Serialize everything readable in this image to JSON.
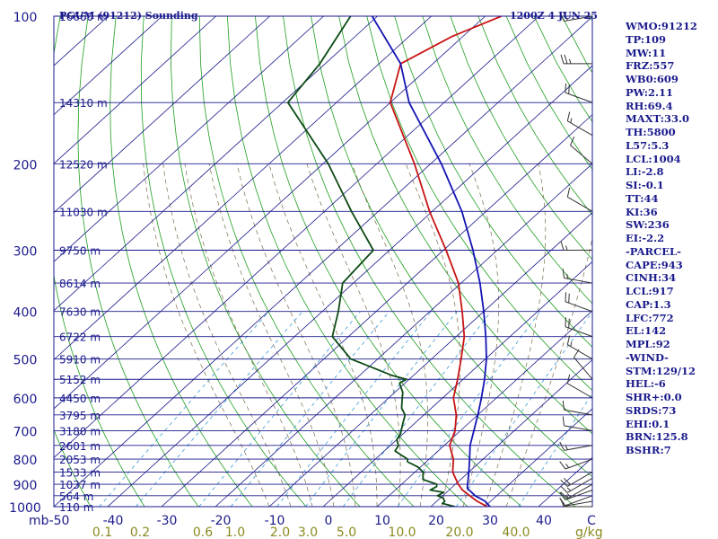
{
  "header": {
    "station": "PGUM (91212) Sounding",
    "time": "1200Z  4 JUN 25"
  },
  "indices": [
    "WMO:91212",
    "TP:109",
    "MW:11",
    "FRZ:557",
    "WB0:609",
    "PW:2.11",
    "RH:69.4",
    "MAXT:33.0",
    "TH:5800",
    "L57:5.3",
    "LCL:1004",
    "LI:-2.8",
    "SI:-0.1",
    "TT:44",
    "KI:36",
    "SW:236",
    "EI:-2.2",
    "-PARCEL-",
    "CAPE:943",
    "CINH:34",
    "LCL:917",
    "CAP:1.3",
    "LFC:772",
    "EL:142",
    "MPL:92",
    "-WIND-",
    "STM:129/12",
    "HEL:-6",
    "SHR+:0.0",
    "SRDS:73",
    "EHI:0.1",
    "BRN:125.8",
    "BSHR:7"
  ],
  "colors": {
    "isobar": "#1a1a8c",
    "isotherm": "#1a1a8c",
    "dry_adiabat": "#1e9e1e",
    "mixing_ratio": "#3a9ad6",
    "moist_adiabat": "#7a6a4a",
    "temperature": "#c81414",
    "dewpoint": "#0c4a14",
    "parcel": "#1414b4",
    "label": "#1a1a8c",
    "mixing_label": "#8a8a20"
  },
  "chart_data": {
    "type": "line",
    "title": "PGUM (91212) Sounding",
    "subtitle": "1200Z  4 JUN 25",
    "xlabel": "C",
    "ylabel": "mb",
    "y_scale": "log",
    "ylim": [
      1000,
      100
    ],
    "xlim": [
      -50,
      50
    ],
    "pressure_ticks": [
      100,
      200,
      300,
      400,
      500,
      600,
      700,
      800,
      900,
      1000
    ],
    "temperature_ticks": [
      "-50",
      "-40",
      "-30",
      "-20",
      "-10",
      "0",
      "10",
      "20",
      "30",
      "40",
      "C"
    ],
    "axis_unit_left": "mb",
    "mixing_ratio_unit": "g/kg",
    "mixing_ratio_labels": [
      "0.1",
      "0.2",
      "0.6",
      "1.0",
      "2.0",
      "3.0",
      "5.0",
      "10.0",
      "20.0",
      "40.0"
    ],
    "height_labels": [
      {
        "p": 100,
        "label": "16660 m"
      },
      {
        "p": 150,
        "label": "14310 m"
      },
      {
        "p": 200,
        "label": "12520 m"
      },
      {
        "p": 250,
        "label": "11030 m"
      },
      {
        "p": 300,
        "label": "9750 m"
      },
      {
        "p": 350,
        "label": "8614 m"
      },
      {
        "p": 400,
        "label": "7630 m"
      },
      {
        "p": 450,
        "label": "6722 m"
      },
      {
        "p": 500,
        "label": "5910 m"
      },
      {
        "p": 550,
        "label": "5152 m"
      },
      {
        "p": 600,
        "label": "4450 m"
      },
      {
        "p": 650,
        "label": "3795 m"
      },
      {
        "p": 700,
        "label": "3180 m"
      },
      {
        "p": 750,
        "label": "2601 m"
      },
      {
        "p": 800,
        "label": "2053 m"
      },
      {
        "p": 850,
        "label": "1533 m"
      },
      {
        "p": 900,
        "label": "1037 m"
      },
      {
        "p": 950,
        "label": "564 m"
      },
      {
        "p": 1000,
        "label": "110 m"
      }
    ],
    "series": [
      {
        "name": "temperature",
        "points": [
          [
            1000,
            30.5
          ],
          [
            975,
            27.5
          ],
          [
            950,
            25.0
          ],
          [
            925,
            22.5
          ],
          [
            900,
            20.5
          ],
          [
            850,
            17.0
          ],
          [
            800,
            14.5
          ],
          [
            750,
            11.0
          ],
          [
            700,
            9.0
          ],
          [
            650,
            6.0
          ],
          [
            600,
            2.0
          ],
          [
            550,
            -1.0
          ],
          [
            500,
            -4.5
          ],
          [
            450,
            -8.5
          ],
          [
            400,
            -14.0
          ],
          [
            350,
            -20.5
          ],
          [
            300,
            -29.5
          ],
          [
            250,
            -40.5
          ],
          [
            200,
            -53.0
          ],
          [
            150,
            -70.0
          ],
          [
            125,
            -76.0
          ],
          [
            110,
            -72.0
          ],
          [
            100,
            -67.0
          ]
        ]
      },
      {
        "name": "dewpoint",
        "points": [
          [
            1000,
            24.5
          ],
          [
            985,
            21.5
          ],
          [
            975,
            21.5
          ],
          [
            960,
            20.5
          ],
          [
            950,
            19.0
          ],
          [
            935,
            19.5
          ],
          [
            925,
            16.5
          ],
          [
            910,
            17.0
          ],
          [
            900,
            16.5
          ],
          [
            880,
            13.0
          ],
          [
            860,
            12.0
          ],
          [
            850,
            11.5
          ],
          [
            830,
            9.5
          ],
          [
            810,
            6.5
          ],
          [
            800,
            6.0
          ],
          [
            785,
            4.0
          ],
          [
            770,
            2.0
          ],
          [
            750,
            1.5
          ],
          [
            730,
            0.0
          ],
          [
            710,
            -0.5
          ],
          [
            700,
            -1.0
          ],
          [
            680,
            -2.0
          ],
          [
            660,
            -3.0
          ],
          [
            650,
            -3.5
          ],
          [
            630,
            -5.5
          ],
          [
            615,
            -6.5
          ],
          [
            600,
            -7.5
          ],
          [
            585,
            -8.5
          ],
          [
            570,
            -10.0
          ],
          [
            560,
            -11.0
          ],
          [
            550,
            -10.5
          ],
          [
            540,
            -14.0
          ],
          [
            525,
            -18.0
          ],
          [
            500,
            -25.0
          ],
          [
            450,
            -33.0
          ],
          [
            400,
            -37.0
          ],
          [
            350,
            -42.0
          ],
          [
            300,
            -43.0
          ],
          [
            250,
            -55.0
          ],
          [
            200,
            -69.0
          ],
          [
            150,
            -89.0
          ],
          [
            125,
            -91.0
          ],
          [
            100,
            -95.0
          ]
        ]
      },
      {
        "name": "parcel",
        "points": [
          [
            1000,
            31.0
          ],
          [
            975,
            29.0
          ],
          [
            950,
            26.0
          ],
          [
            917,
            23.0
          ],
          [
            850,
            20.0
          ],
          [
            800,
            17.5
          ],
          [
            750,
            14.8
          ],
          [
            700,
            12.5
          ],
          [
            650,
            10.0
          ],
          [
            600,
            7.2
          ],
          [
            550,
            4.0
          ],
          [
            500,
            0.2
          ],
          [
            450,
            -4.5
          ],
          [
            400,
            -10.0
          ],
          [
            350,
            -16.5
          ],
          [
            300,
            -24.5
          ],
          [
            250,
            -34.5
          ],
          [
            200,
            -48.0
          ],
          [
            150,
            -66.5
          ],
          [
            125,
            -76.0
          ],
          [
            100,
            -91.0
          ]
        ]
      }
    ],
    "wind_barbs": [
      {
        "p": 1000,
        "dir": 270,
        "spd": 5
      },
      {
        "p": 975,
        "dir": 260,
        "spd": 10
      },
      {
        "p": 950,
        "dir": 250,
        "spd": 10
      },
      {
        "p": 925,
        "dir": 250,
        "spd": 15
      },
      {
        "p": 900,
        "dir": 240,
        "spd": 15
      },
      {
        "p": 875,
        "dir": 240,
        "spd": 15
      },
      {
        "p": 850,
        "dir": 240,
        "spd": 20
      },
      {
        "p": 800,
        "dir": 250,
        "spd": 15
      },
      {
        "p": 750,
        "dir": 260,
        "spd": 15
      },
      {
        "p": 700,
        "dir": 280,
        "spd": 10
      },
      {
        "p": 650,
        "dir": 280,
        "spd": 10
      },
      {
        "p": 600,
        "dir": 300,
        "spd": 10
      },
      {
        "p": 550,
        "dir": 320,
        "spd": 10
      },
      {
        "p": 500,
        "dir": 300,
        "spd": 15
      },
      {
        "p": 450,
        "dir": 290,
        "spd": 20
      },
      {
        "p": 400,
        "dir": 290,
        "spd": 20
      },
      {
        "p": 350,
        "dir": 280,
        "spd": 15
      },
      {
        "p": 300,
        "dir": 270,
        "spd": 15
      },
      {
        "p": 250,
        "dir": 300,
        "spd": 10
      },
      {
        "p": 200,
        "dir": 310,
        "spd": 10
      },
      {
        "p": 175,
        "dir": 300,
        "spd": 15
      },
      {
        "p": 150,
        "dir": 290,
        "spd": 20
      },
      {
        "p": 125,
        "dir": 270,
        "spd": 25
      },
      {
        "p": 100,
        "dir": 260,
        "spd": 20
      }
    ]
  }
}
